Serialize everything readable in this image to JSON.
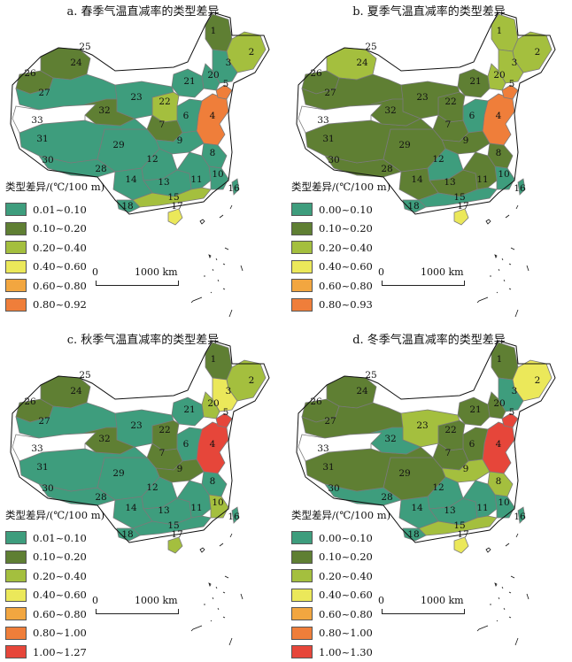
{
  "panels": [
    {
      "title": "a. 春季气温直减率的类型差异",
      "legend_title": "类型差异/(℃/100 m)",
      "legend": [
        {
          "label": "0.01~0.10",
          "color": "#3e9d7d"
        },
        {
          "label": "0.10~0.20",
          "color": "#5f7f33"
        },
        {
          "label": "0.20~0.40",
          "color": "#a4bf3e"
        },
        {
          "label": "0.40~0.60",
          "color": "#ebe85a"
        },
        {
          "label": "0.60~0.80",
          "color": "#f2a640"
        },
        {
          "label": "0.80~0.92",
          "color": "#ef7e3a"
        }
      ],
      "region_classes": {
        "1": 1,
        "2": 2,
        "3": 0,
        "4": 5,
        "5": 5,
        "6": 0,
        "7": 1,
        "8": 0,
        "9": 0,
        "10": 0,
        "11": 0,
        "12": 0,
        "13": 0,
        "14": 0,
        "15": 2,
        "16": 0,
        "17": 3,
        "18": 0,
        "20": 0,
        "21": 0,
        "22": 2,
        "23": 0,
        "24": 1,
        "26": 1,
        "27": 0,
        "29": 0,
        "30": 0,
        "31": 0,
        "32": 1
      },
      "scale_zero": "0",
      "scale_label": "1000 km"
    },
    {
      "title": "b. 夏季气温直减率的类型差异",
      "legend_title": "类型差异/(℃/100 m)",
      "legend": [
        {
          "label": "0.00~0.10",
          "color": "#3e9d7d"
        },
        {
          "label": "0.10~0.20",
          "color": "#5f7f33"
        },
        {
          "label": "0.20~0.40",
          "color": "#a4bf3e"
        },
        {
          "label": "0.40~0.60",
          "color": "#ebe85a"
        },
        {
          "label": "0.60~0.80",
          "color": "#f2a640"
        },
        {
          "label": "0.80~0.93",
          "color": "#ef7e3a"
        }
      ],
      "region_classes": {
        "1": 2,
        "2": 2,
        "3": 2,
        "4": 5,
        "5": 5,
        "6": 0,
        "7": 1,
        "8": 1,
        "9": 1,
        "10": 0,
        "11": 1,
        "12": 0,
        "13": 1,
        "14": 1,
        "15": 0,
        "16": 0,
        "17": 3,
        "18": 0,
        "20": 2,
        "21": 1,
        "22": 1,
        "23": 1,
        "24": 2,
        "26": 1,
        "27": 1,
        "29": 1,
        "30": 1,
        "31": 1,
        "32": 1
      },
      "scale_zero": "0",
      "scale_label": "1000 km"
    },
    {
      "title": "c. 秋季气温直减率的类型差异",
      "legend_title": "类型差异/(℃/100 m)",
      "legend": [
        {
          "label": "0.01~0.10",
          "color": "#3e9d7d"
        },
        {
          "label": "0.10~0.20",
          "color": "#5f7f33"
        },
        {
          "label": "0.20~0.40",
          "color": "#a4bf3e"
        },
        {
          "label": "0.40~0.60",
          "color": "#ebe85a"
        },
        {
          "label": "0.60~0.80",
          "color": "#f2a640"
        },
        {
          "label": "0.80~1.00",
          "color": "#ef7e3a"
        },
        {
          "label": "1.00~1.27",
          "color": "#e6463a"
        }
      ],
      "region_classes": {
        "1": 1,
        "2": 2,
        "3": 3,
        "4": 6,
        "5": 6,
        "6": 0,
        "7": 1,
        "8": 0,
        "9": 1,
        "10": 2,
        "11": 0,
        "12": 0,
        "13": 0,
        "14": 0,
        "15": 0,
        "16": 0,
        "17": 2,
        "18": 0,
        "20": 2,
        "21": 0,
        "22": 1,
        "23": 0,
        "24": 1,
        "26": 1,
        "27": 0,
        "29": 0,
        "30": 0,
        "31": 0,
        "32": 1
      },
      "scale_zero": "0",
      "scale_label": "1000 km"
    },
    {
      "title": "d. 冬季气温直减率的类型差异",
      "legend_title": "类型差异/(℃/100 m)",
      "legend": [
        {
          "label": "0.00~0.10",
          "color": "#3e9d7d"
        },
        {
          "label": "0.10~0.20",
          "color": "#5f7f33"
        },
        {
          "label": "0.20~0.40",
          "color": "#a4bf3e"
        },
        {
          "label": "0.40~0.60",
          "color": "#ebe85a"
        },
        {
          "label": "0.60~0.80",
          "color": "#f2a640"
        },
        {
          "label": "0.80~1.00",
          "color": "#ef7e3a"
        },
        {
          "label": "1.00~1.30",
          "color": "#e6463a"
        }
      ],
      "region_classes": {
        "1": 1,
        "2": 3,
        "3": 0,
        "4": 6,
        "5": 6,
        "6": 1,
        "7": 1,
        "8": 2,
        "9": 2,
        "10": 0,
        "11": 0,
        "12": 0,
        "13": 0,
        "14": 0,
        "15": 2,
        "16": 0,
        "17": 3,
        "18": 0,
        "20": 1,
        "21": 1,
        "22": 1,
        "23": 2,
        "24": 1,
        "26": 1,
        "27": 1,
        "29": 1,
        "30": 0,
        "31": 1,
        "32": 0
      },
      "scale_zero": "0",
      "scale_label": "1000 km"
    }
  ]
}
